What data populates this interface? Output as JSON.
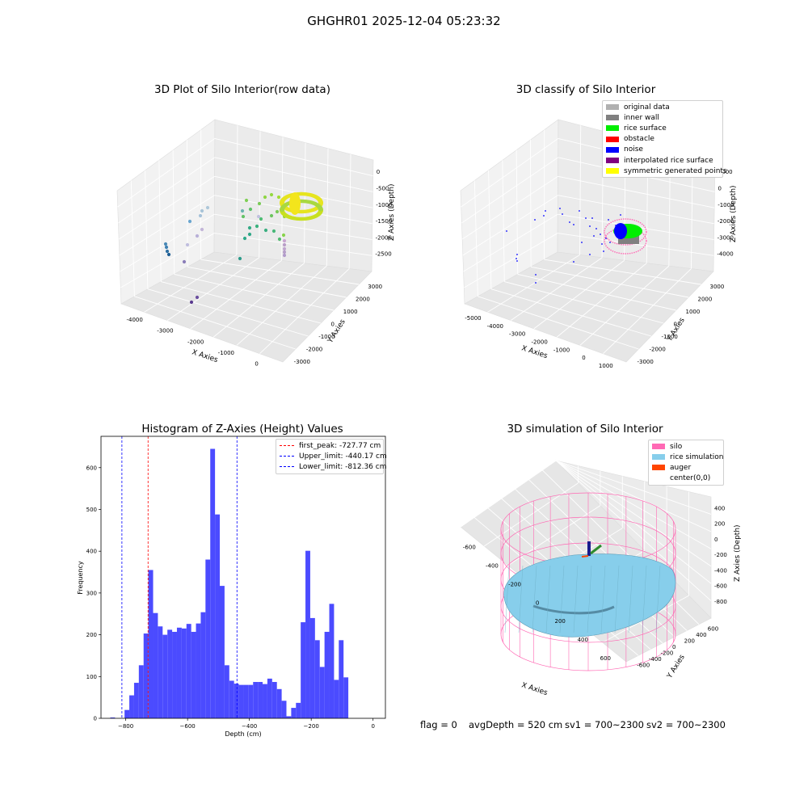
{
  "suptitle": "GHGHR01 2025-12-04 05:23:32",
  "colors": {
    "hist_bar": "#4b4bff",
    "peak_line": "#ff0000",
    "limit_line": "#0000ff",
    "silo": "#ff69b4",
    "rice": "#87ceeb",
    "auger": "#ff4500"
  },
  "chart_data": [
    {
      "type": "scatter",
      "title": "3D Plot of Silo Interior(row data)",
      "xlabel": "X Axies",
      "ylabel": "Y Axies",
      "zlabel": "Z Axies (Depth)",
      "xticks": [
        "-4000",
        "-3000",
        "-2000",
        "-1000",
        "0"
      ],
      "yticks": [
        "-3000",
        "-2000",
        "-1000",
        "0",
        "1000",
        "2000",
        "3000"
      ],
      "zticks": [
        "0",
        "-500",
        "-1000",
        "-1500",
        "-2000",
        "-2500"
      ]
    },
    {
      "type": "scatter",
      "title": "3D classify of Silo Interior",
      "xlabel": "X Axies",
      "ylabel": "Y Axies",
      "zlabel": "Z Axies (Depth)",
      "xticks": [
        "-5000",
        "-4000",
        "-3000",
        "-2000",
        "-1000",
        "0",
        "1000"
      ],
      "yticks": [
        "-3000",
        "-2000",
        "-1000",
        "0",
        "1000",
        "2000",
        "3000"
      ],
      "zticks": [
        "1000",
        "0",
        "-1000",
        "-2000",
        "-3000",
        "-4000"
      ],
      "legend_position": "top-right",
      "legend": [
        {
          "label": "original data",
          "color": "#b0b0b0"
        },
        {
          "label": "inner wall",
          "color": "#808080"
        },
        {
          "label": "rice surface",
          "color": "#00ee00"
        },
        {
          "label": "obstacle",
          "color": "#ff0000"
        },
        {
          "label": "noise",
          "color": "#0000ff"
        },
        {
          "label": "interpolated rice surface",
          "color": "#800080"
        },
        {
          "label": "symmetric generated points",
          "color": "#ffff00"
        }
      ]
    },
    {
      "type": "bar",
      "title": "Histogram of Z-Axies (Height) Values",
      "xlabel": "Depth (cm)",
      "ylabel": "Frequency",
      "xlim": [
        -880,
        40
      ],
      "ylim": [
        0,
        675
      ],
      "xticks": [
        -800,
        -600,
        -400,
        -200,
        0
      ],
      "yticks": [
        0,
        100,
        200,
        300,
        400,
        500,
        600
      ],
      "bin_width": 15.4,
      "bin_start": -850,
      "values": [
        2,
        0,
        0,
        20,
        55,
        85,
        127,
        203,
        355,
        252,
        220,
        200,
        212,
        207,
        217,
        215,
        226,
        207,
        227,
        254,
        380,
        645,
        488,
        317,
        127,
        90,
        83,
        80,
        80,
        80,
        87,
        87,
        82,
        95,
        87,
        70,
        42,
        5,
        25,
        37,
        230,
        401,
        240,
        187,
        123,
        207,
        274,
        92,
        187,
        98
      ],
      "vlines": [
        {
          "name": "first_peak",
          "label": "first_peak: -727.77 cm",
          "x": -727.77,
          "color": "#ff0000"
        },
        {
          "name": "upper-limit",
          "label": "Upper_limit: -440.17 cm",
          "x": -440.17,
          "color": "#0000ff"
        },
        {
          "name": "lower-limit",
          "label": "Lower_limit: -812.36 cm",
          "x": -812.36,
          "color": "#0000ff"
        }
      ],
      "legend_position": "top-right"
    },
    {
      "type": "surface",
      "title": "3D simulation of Silo Interior",
      "xlabel": "X Axies",
      "ylabel": "Y Axies",
      "zlabel": "Z Axies (Depth)",
      "xticks": [
        "-600",
        "-400",
        "-200",
        "0",
        "200",
        "400",
        "600"
      ],
      "yticks": [
        "-600",
        "-400",
        "-200",
        "0",
        "200",
        "400",
        "600"
      ],
      "zticks": [
        "400",
        "200",
        "0",
        "-200",
        "-400",
        "-600",
        "-800"
      ],
      "legend_position": "top-right",
      "legend": [
        {
          "label": "silo",
          "color": "#ff69b4"
        },
        {
          "label": "rice simulation",
          "color": "#87ceeb"
        },
        {
          "label": "auger",
          "color": "#ff4500"
        },
        {
          "label": "center(0,0)",
          "color": ""
        }
      ]
    }
  ],
  "status": {
    "flag": "flag = 0",
    "avg_depth": "avgDepth = 520 cm",
    "sv1": "sv1 = 700~2300",
    "sv2": "sv2 = 700~2300"
  }
}
